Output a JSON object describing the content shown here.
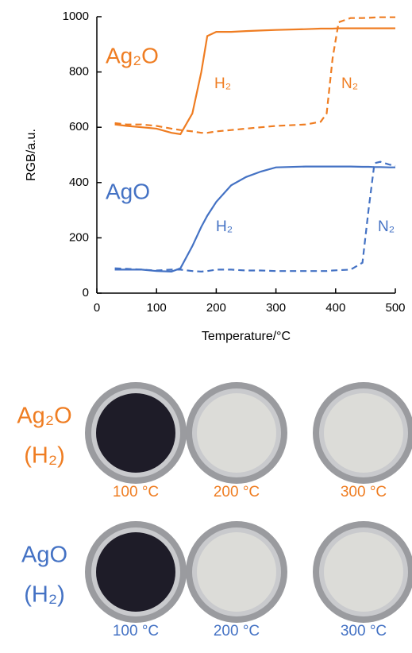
{
  "chart_data": {
    "type": "line",
    "xlabel": "Temperature/°C",
    "ylabel": "RGB/a.u.",
    "annotations": [
      "Ag₂O",
      "AgO"
    ],
    "x": [
      30,
      50,
      75,
      100,
      125,
      140,
      160,
      175,
      185,
      200,
      225,
      250,
      275,
      300,
      350,
      375,
      385,
      395,
      405,
      425,
      445,
      455,
      465,
      475,
      490,
      500
    ],
    "series": [
      {
        "name": "H₂",
        "color": "#ef7d22",
        "dash": false,
        "values": [
          610,
          605,
          600,
          595,
          580,
          575,
          650,
          800,
          930,
          945,
          945,
          948,
          950,
          952,
          955,
          957,
          957,
          957,
          958,
          958,
          958,
          958,
          958,
          958,
          958,
          958
        ]
      },
      {
        "name": "N₂",
        "color": "#ef7d22",
        "dash": true,
        "values": [
          615,
          610,
          610,
          605,
          595,
          590,
          585,
          580,
          580,
          585,
          590,
          595,
          600,
          605,
          610,
          620,
          650,
          850,
          980,
          995,
          995,
          996,
          997,
          998,
          998,
          998
        ]
      },
      {
        "name": "H₂",
        "color": "#4472c4",
        "dash": false,
        "values": [
          85,
          85,
          85,
          80,
          78,
          90,
          170,
          240,
          280,
          330,
          390,
          420,
          440,
          455,
          458,
          458,
          458,
          458,
          458,
          458,
          457,
          457,
          456,
          456,
          455,
          455
        ]
      },
      {
        "name": "N₂",
        "color": "#4472c4",
        "dash": true,
        "values": [
          90,
          88,
          85,
          82,
          85,
          85,
          80,
          78,
          80,
          85,
          85,
          82,
          82,
          80,
          80,
          80,
          80,
          82,
          83,
          85,
          110,
          300,
          470,
          475,
          465,
          460
        ]
      }
    ],
    "xlim": [
      0,
      500
    ],
    "xticks": [
      0,
      100,
      200,
      300,
      400,
      500
    ],
    "ylim": [
      0,
      1000
    ],
    "yticks": [
      0,
      200,
      400,
      600,
      800,
      1000
    ]
  },
  "photos": {
    "rows": [
      {
        "label": [
          "Ag₂O",
          "(H₂)"
        ],
        "color": "#ef7d22",
        "temperatures": [
          "100 °C",
          "200 °C",
          "300 °C"
        ]
      },
      {
        "label": [
          "AgO",
          "(H₂)"
        ],
        "color": "#4472c4",
        "temperatures": [
          "100 °C",
          "200 °C",
          "300 °C"
        ]
      }
    ]
  }
}
